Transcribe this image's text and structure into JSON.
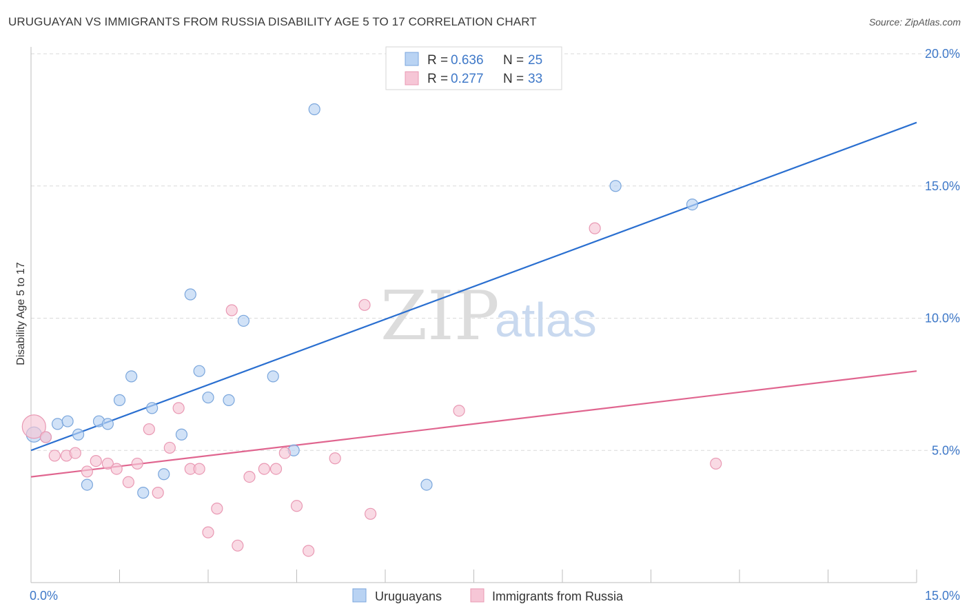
{
  "title": "URUGUAYAN VS IMMIGRANTS FROM RUSSIA DISABILITY AGE 5 TO 17 CORRELATION CHART",
  "source": "Source: ZipAtlas.com",
  "watermark": {
    "zip": "ZIP",
    "atlas": "atlas"
  },
  "colors": {
    "blue_fill": "#b9d3f3",
    "blue_stroke": "#7aa6dc",
    "blue_line": "#2a6fd0",
    "pink_fill": "#f6c6d6",
    "pink_stroke": "#e998b3",
    "pink_line": "#e0658f",
    "grid": "#d9d9d9",
    "tick_text": "#3e78c8"
  },
  "legend_box": {
    "rows": [
      {
        "r_label": "R =",
        "r_value": "0.636",
        "n_label": "N =",
        "n_value": "25"
      },
      {
        "r_label": "R =",
        "r_value": "0.277",
        "n_label": "N =",
        "n_value": "33"
      }
    ]
  },
  "chart_data": {
    "type": "scatter",
    "title": "URUGUAYAN VS IMMIGRANTS FROM RUSSIA DISABILITY AGE 5 TO 17 CORRELATION CHART",
    "xlabel": "",
    "ylabel": "Disability Age 5 to 17",
    "xlim": [
      0,
      15
    ],
    "ylim": [
      0,
      20
    ],
    "x_tick_labels": [
      "0.0%",
      "15.0%"
    ],
    "y_ticks": [
      5,
      10,
      15,
      20
    ],
    "y_tick_labels": [
      "5.0%",
      "10.0%",
      "15.0%",
      "20.0%"
    ],
    "legend_position": "top-center",
    "series": [
      {
        "name": "Uruguayans",
        "color": "blue",
        "points": [
          [
            0.05,
            5.6
          ],
          [
            0.25,
            5.5
          ],
          [
            0.45,
            6.0
          ],
          [
            0.62,
            6.1
          ],
          [
            0.8,
            5.6
          ],
          [
            0.95,
            3.7
          ],
          [
            1.15,
            6.1
          ],
          [
            1.3,
            6.0
          ],
          [
            1.5,
            6.9
          ],
          [
            1.7,
            7.8
          ],
          [
            1.9,
            3.4
          ],
          [
            2.05,
            6.6
          ],
          [
            2.25,
            4.1
          ],
          [
            2.55,
            5.6
          ],
          [
            2.7,
            10.9
          ],
          [
            2.85,
            8.0
          ],
          [
            3.0,
            7.0
          ],
          [
            3.35,
            6.9
          ],
          [
            3.6,
            9.9
          ],
          [
            4.1,
            7.8
          ],
          [
            4.45,
            5.0
          ],
          [
            4.8,
            17.9
          ],
          [
            6.7,
            3.7
          ],
          [
            9.9,
            15.0
          ],
          [
            11.2,
            14.3
          ]
        ],
        "trend": {
          "x": [
            0,
            15
          ],
          "y": [
            5.0,
            17.4
          ]
        }
      },
      {
        "name": "Immigrants from Russia",
        "color": "pink",
        "points": [
          [
            0.05,
            5.9
          ],
          [
            0.25,
            5.5
          ],
          [
            0.4,
            4.8
          ],
          [
            0.6,
            4.8
          ],
          [
            0.75,
            4.9
          ],
          [
            0.95,
            4.2
          ],
          [
            1.1,
            4.6
          ],
          [
            1.3,
            4.5
          ],
          [
            1.45,
            4.3
          ],
          [
            1.65,
            3.8
          ],
          [
            1.8,
            4.5
          ],
          [
            2.0,
            5.8
          ],
          [
            2.15,
            3.4
          ],
          [
            2.35,
            5.1
          ],
          [
            2.5,
            6.6
          ],
          [
            2.7,
            4.3
          ],
          [
            2.85,
            4.3
          ],
          [
            3.0,
            1.9
          ],
          [
            3.15,
            2.8
          ],
          [
            3.4,
            10.3
          ],
          [
            3.5,
            1.4
          ],
          [
            3.7,
            4.0
          ],
          [
            3.95,
            4.3
          ],
          [
            4.15,
            4.3
          ],
          [
            4.3,
            4.9
          ],
          [
            4.5,
            2.9
          ],
          [
            4.7,
            1.2
          ],
          [
            5.15,
            4.7
          ],
          [
            5.65,
            10.5
          ],
          [
            5.75,
            2.6
          ],
          [
            7.25,
            6.5
          ],
          [
            9.55,
            13.4
          ],
          [
            11.6,
            4.5
          ]
        ],
        "trend": {
          "x": [
            0,
            15
          ],
          "y": [
            4.0,
            8.0
          ]
        }
      }
    ]
  }
}
